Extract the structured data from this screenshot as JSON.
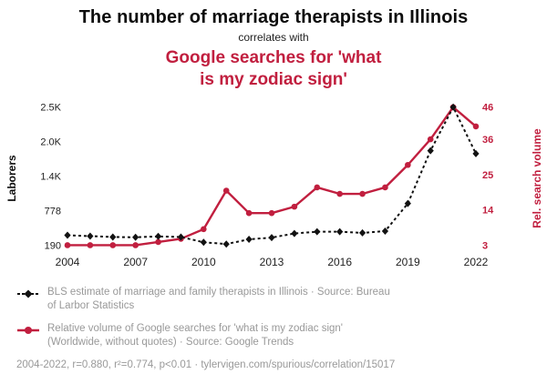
{
  "colors": {
    "accent": "#c11f3f",
    "ink": "#121212",
    "muted": "#999999"
  },
  "header": {
    "title": "The number of marriage therapists in Illinois",
    "subtitle": "correlates with",
    "red_title_line1": "Google searches for 'what",
    "red_title_line2": "is my zodiac sign'"
  },
  "chart_data": {
    "type": "line",
    "x": [
      2004,
      2005,
      2006,
      2007,
      2008,
      2009,
      2010,
      2011,
      2012,
      2013,
      2014,
      2015,
      2016,
      2017,
      2018,
      2019,
      2020,
      2021,
      2022
    ],
    "x_ticks": [
      2004,
      2007,
      2010,
      2013,
      2016,
      2019,
      2022
    ],
    "grid": false,
    "legend_position": "bottom",
    "series": [
      {
        "name": "BLS estimate of marriage and family therapists in Illinois",
        "axis": "left",
        "color": "#121212",
        "style": "dashed",
        "marker": "diamond",
        "values": [
          360,
          345,
          330,
          325,
          340,
          330,
          240,
          210,
          290,
          320,
          390,
          420,
          420,
          400,
          430,
          900,
          1800,
          2542,
          1750
        ]
      },
      {
        "name": "Relative volume of Google searches for 'what is my zodiac sign'",
        "axis": "right",
        "color": "#c11f3f",
        "style": "solid",
        "marker": "circle",
        "values": [
          3,
          3,
          3,
          3,
          4,
          5,
          8,
          20,
          13,
          13,
          15,
          21,
          19,
          19,
          21,
          28,
          36,
          46,
          40
        ]
      }
    ],
    "left_axis": {
      "label": "Laborers",
      "domain": [
        120,
        2600
      ],
      "ticks": [
        190,
        778,
        1366,
        1954,
        2542
      ],
      "tick_labels": [
        "190",
        "778",
        "1.4K",
        "2.0K",
        "2.5K"
      ]
    },
    "right_axis": {
      "label": "Rel. search volume",
      "ticks": [
        3,
        14,
        25,
        36,
        46
      ],
      "tick_labels": [
        "3",
        "14",
        "25",
        "36",
        "46"
      ]
    }
  },
  "legend": {
    "items": [
      {
        "lines": [
          "BLS estimate of marriage and family therapists in Illinois · Source: Bureau",
          "of Larbor Statistics"
        ]
      },
      {
        "lines": [
          "Relative volume of Google searches for 'what is my zodiac sign'",
          "(Worldwide, without quotes) · Source: Google Trends"
        ]
      }
    ],
    "footer": "2004-2022, r=0.880, r²=0.774, p<0.01 · tylervigen.com/spurious/correlation/15017"
  }
}
